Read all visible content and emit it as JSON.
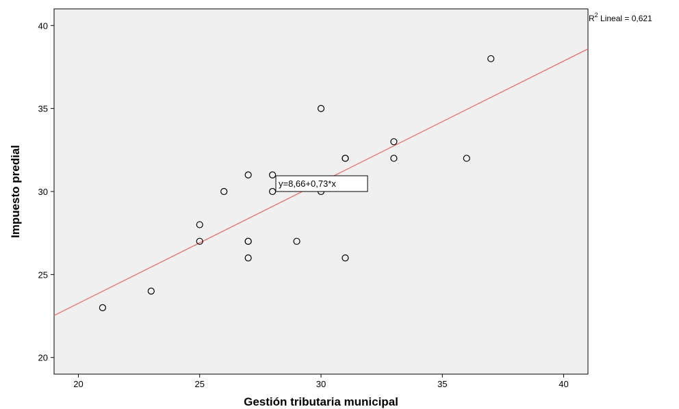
{
  "chart_data": {
    "type": "scatter",
    "xlabel": "Gestión tributaria municipal",
    "ylabel": "Impuesto predial",
    "xlim": [
      19,
      41
    ],
    "ylim": [
      19,
      41
    ],
    "x_ticks": [
      20,
      25,
      30,
      35,
      40
    ],
    "y_ticks": [
      20,
      25,
      30,
      35,
      40
    ],
    "grid": false,
    "plot_background": "#f0f0f0",
    "point_color": "#000000",
    "points": [
      {
        "x": 21,
        "y": 23
      },
      {
        "x": 23,
        "y": 24
      },
      {
        "x": 25,
        "y": 27
      },
      {
        "x": 25,
        "y": 28
      },
      {
        "x": 26,
        "y": 30
      },
      {
        "x": 27,
        "y": 26
      },
      {
        "x": 27,
        "y": 27
      },
      {
        "x": 27,
        "y": 27
      },
      {
        "x": 27,
        "y": 31
      },
      {
        "x": 28,
        "y": 30
      },
      {
        "x": 28,
        "y": 31
      },
      {
        "x": 29,
        "y": 27
      },
      {
        "x": 30,
        "y": 30
      },
      {
        "x": 30,
        "y": 35
      },
      {
        "x": 31,
        "y": 26
      },
      {
        "x": 31,
        "y": 32
      },
      {
        "x": 31,
        "y": 32
      },
      {
        "x": 33,
        "y": 32
      },
      {
        "x": 33,
        "y": 33
      },
      {
        "x": 36,
        "y": 32
      },
      {
        "x": 37,
        "y": 38
      }
    ],
    "fit_line": {
      "intercept": 8.66,
      "slope": 0.73,
      "color": "#f26b6b",
      "equation_label": "y=8,66+0,73*x"
    },
    "r2_label": {
      "prefix": "R",
      "superscript": "2",
      "text": " Lineal = 0,621"
    }
  }
}
